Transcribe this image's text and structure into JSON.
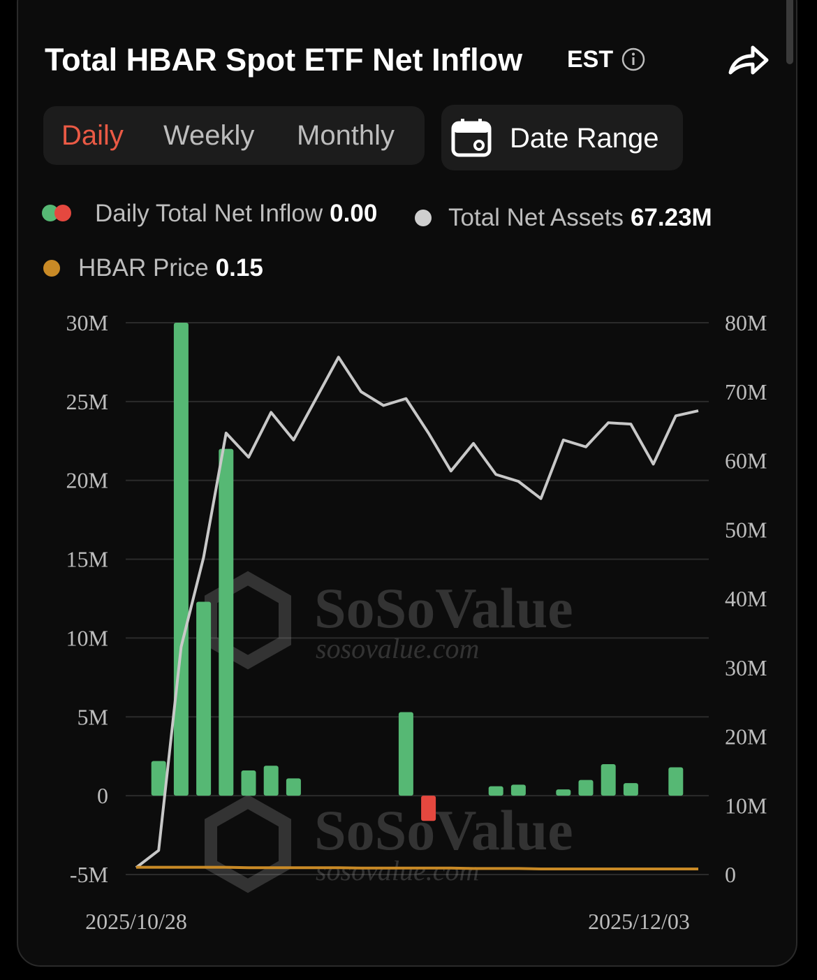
{
  "header": {
    "title": "Total HBAR Spot ETF Net Inflow",
    "timezone": "EST",
    "info_icon": "info-icon",
    "share_icon": "share-icon"
  },
  "tabs": [
    {
      "label": "Daily",
      "active": true
    },
    {
      "label": "Weekly",
      "active": false
    },
    {
      "label": "Monthly",
      "active": false
    }
  ],
  "date_range": {
    "label": "Date Range",
    "icon": "calendar-icon"
  },
  "legend": {
    "inflow": {
      "label": "Daily Total Net Inflow",
      "value": "0.00"
    },
    "assets": {
      "label": "Total Net Assets",
      "value": "67.23M"
    },
    "price": {
      "label": "HBAR Price",
      "value": "0.15"
    }
  },
  "colors": {
    "positive": "#56b874",
    "negative": "#e5483f",
    "assets_line": "#c8c8c8",
    "price_line": "#c98a26",
    "accent": "#ea5a45"
  },
  "chart_data": {
    "type": "bar",
    "x_start_label": "2025/10/28",
    "x_end_label": "2025/12/03",
    "y_left": {
      "ticks": [
        "30M",
        "25M",
        "20M",
        "15M",
        "10M",
        "5M",
        "0",
        "-5M"
      ],
      "range": [
        -5000000,
        30000000
      ]
    },
    "y_right": {
      "ticks": [
        "80M",
        "70M",
        "60M",
        "50M",
        "40M",
        "30M",
        "20M",
        "10M",
        "0"
      ],
      "range": [
        0,
        80000000
      ]
    },
    "series": [
      {
        "name": "Daily Total Net Inflow",
        "type": "bar",
        "values": [
          0,
          2200000,
          30000000,
          12300000,
          22000000,
          1600000,
          1900000,
          1100000,
          0,
          0,
          0,
          0,
          5300000,
          -1600000,
          0,
          0,
          600000,
          700000,
          0,
          400000,
          1000000,
          2000000,
          800000,
          0,
          1800000,
          0
        ]
      },
      {
        "name": "Total Net Assets",
        "type": "line",
        "values": [
          1000000,
          3500000,
          33000000,
          46000000,
          64000000,
          60500000,
          67000000,
          63000000,
          69000000,
          75000000,
          70000000,
          68000000,
          69000000,
          64000000,
          58500000,
          62500000,
          58000000,
          57000000,
          54500000,
          63000000,
          62000000,
          65500000,
          65300000,
          59500000,
          66500000,
          67230000
        ]
      },
      {
        "name": "HBAR Price",
        "type": "line",
        "values": [
          0.19,
          0.19,
          0.19,
          0.19,
          0.19,
          0.18,
          0.18,
          0.18,
          0.18,
          0.18,
          0.17,
          0.17,
          0.17,
          0.17,
          0.17,
          0.16,
          0.16,
          0.16,
          0.15,
          0.15,
          0.15,
          0.15,
          0.15,
          0.15,
          0.15,
          0.15
        ]
      }
    ],
    "watermark": {
      "brand": "SoSoValue",
      "url": "sosovalue.com"
    }
  }
}
